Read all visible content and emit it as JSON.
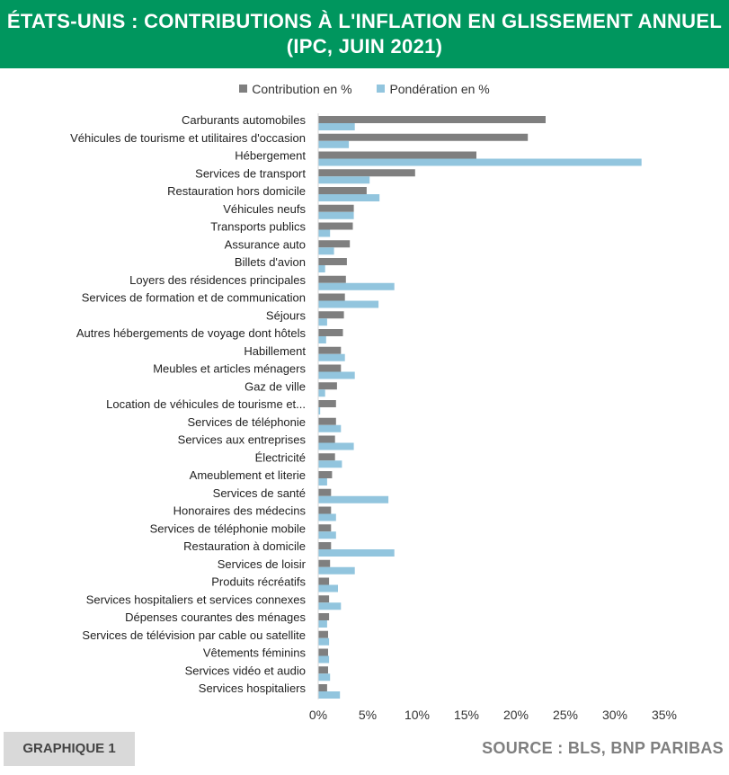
{
  "header": {
    "title_line1": "ÉTATS-UNIS : CONTRIBUTIONS À L'INFLATION EN GLISSEMENT ANNUEL",
    "title_line2": "(IPC, JUIN 2021)"
  },
  "footer": {
    "tag": "GRAPHIQUE 1",
    "source": "SOURCE : BLS, BNP PARIBAS"
  },
  "colors": {
    "title_bg": "#00965e",
    "contribution": "#7f7f7f",
    "ponderation": "#92c5de"
  },
  "chart_data": {
    "type": "bar",
    "orientation": "horizontal",
    "legend_position": "top",
    "grid": false,
    "xlim": [
      0,
      35
    ],
    "x_ticks": [
      "0%",
      "5%",
      "10%",
      "15%",
      "20%",
      "25%",
      "30%",
      "35%"
    ],
    "categories": [
      "Carburants automobiles",
      "Véhicules de tourisme et utilitaires d'occasion",
      "Hébergement",
      "Services de transport",
      "Restauration hors domicile",
      "Véhicules neufs",
      "Transports publics",
      "Assurance auto",
      "Billets d'avion",
      "Loyers des résidences principales",
      "Services de formation et de communication",
      "Séjours",
      "Autres hébergements de voyage dont hôtels",
      "Habillement",
      "Meubles et articles ménagers",
      "Gaz de ville",
      "Location de véhicules de tourisme et...",
      "Services de téléphonie",
      "Services aux entreprises",
      "Électricité",
      "Ameublement et literie",
      "Services de santé",
      "Honoraires des médecins",
      "Services de téléphonie mobile",
      "Restauration à domicile",
      "Services de loisir",
      "Produits récréatifs",
      "Services hospitaliers et services connexes",
      "Dépenses courantes des ménages",
      "Services de télévision par cable ou satellite",
      "Vêtements féminins",
      "Services vidéo et audio",
      "Services hospitaliers"
    ],
    "series": [
      {
        "name": "Contribution en %",
        "values": [
          23.0,
          21.2,
          16.0,
          9.8,
          4.9,
          3.6,
          3.5,
          3.2,
          2.9,
          2.8,
          2.7,
          2.6,
          2.5,
          2.3,
          2.3,
          1.9,
          1.8,
          1.8,
          1.7,
          1.7,
          1.4,
          1.3,
          1.3,
          1.3,
          1.3,
          1.2,
          1.1,
          1.1,
          1.1,
          1.0,
          1.0,
          1.0,
          0.9
        ]
      },
      {
        "name": "Pondération en %",
        "values": [
          3.7,
          3.1,
          32.7,
          5.2,
          6.2,
          3.6,
          1.2,
          1.6,
          0.7,
          7.7,
          6.1,
          0.9,
          0.8,
          2.7,
          3.7,
          0.7,
          0.2,
          2.3,
          3.6,
          2.4,
          0.9,
          7.1,
          1.8,
          1.8,
          7.7,
          3.7,
          2.0,
          2.3,
          0.9,
          1.1,
          1.1,
          1.2,
          2.2
        ]
      }
    ]
  }
}
